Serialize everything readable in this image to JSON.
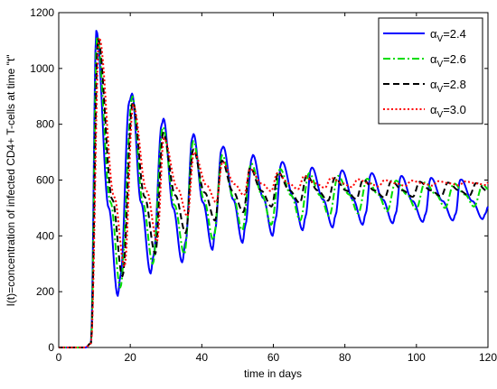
{
  "chart_data": {
    "type": "line",
    "xlabel": "time in days",
    "ylabel": "I(t)=concentration of infected CD4+ T-cells at time \"t\"",
    "xlim": [
      0,
      120
    ],
    "ylim": [
      0,
      1200
    ],
    "xticks": [
      0,
      20,
      40,
      60,
      80,
      100,
      120
    ],
    "yticks": [
      0,
      200,
      400,
      600,
      800,
      1000,
      1200
    ],
    "grid": false,
    "legend_position": "top-right",
    "series": [
      {
        "name": "αV=2.4",
        "legend_base": "α",
        "legend_sub": "V",
        "legend_value": "=2.4",
        "color": "#0000ff",
        "style": "solid",
        "period": 8.3,
        "x": [
          0,
          7.5,
          9,
          10.5,
          14,
          16.5,
          17.3,
          19.7,
          20.5,
          23,
          25.7,
          26.5,
          28.8,
          29.3,
          32,
          34.5,
          35.5,
          37.3,
          37.7,
          40.3,
          43,
          43.7,
          45.5,
          46,
          48.8,
          51.4,
          52.2,
          54,
          54.3,
          57.2,
          59.8,
          60.6,
          62.2,
          62.5,
          65.7,
          68.2,
          69,
          70.5,
          70.8,
          73.9,
          76.6,
          77.4,
          78.9,
          79.2,
          82.3,
          85,
          85.8,
          87.2,
          87.5,
          90.6,
          93.4,
          94.2,
          95.6,
          95.8,
          98.9,
          101.8,
          102.6,
          103.9,
          104.1,
          107.3,
          110.2,
          111,
          112.2,
          112.5,
          115.6,
          118.5,
          119.3,
          120
        ],
        "y": [
          0,
          0,
          15,
          1135,
          500,
          185,
          260,
          880,
          910,
          520,
          265,
          330,
          800,
          820,
          500,
          305,
          380,
          750,
          765,
          520,
          350,
          420,
          710,
          720,
          530,
          375,
          440,
          680,
          690,
          535,
          400,
          460,
          660,
          665,
          535,
          420,
          470,
          640,
          645,
          530,
          430,
          475,
          630,
          635,
          530,
          440,
          480,
          620,
          625,
          530,
          445,
          480,
          612,
          615,
          525,
          450,
          480,
          605,
          608,
          525,
          455,
          480,
          600,
          602,
          525,
          460,
          480,
          505
        ]
      },
      {
        "name": "αV=2.6",
        "legend_base": "α",
        "legend_sub": "V",
        "legend_value": "=2.6",
        "color": "#00dd00",
        "style": "dashdot",
        "period": 8.1,
        "x": [
          0,
          7.5,
          9,
          10.7,
          14.5,
          17.2,
          20.6,
          23.5,
          26.3,
          29.1,
          32.4,
          35.1,
          37.6,
          40.6,
          43.2,
          45.7,
          48.8,
          51.3,
          53.8,
          56.9,
          59.4,
          61.9,
          65,
          67.5,
          70,
          73.1,
          75.6,
          78.1,
          81.2,
          83.7,
          86.2,
          89.3,
          91.8,
          94.3,
          97.4,
          99.9,
          102.4,
          105.5,
          108,
          110.5,
          113.6,
          116.1,
          118.6,
          120
        ],
        "y": [
          0,
          0,
          15,
          1115,
          520,
          215,
          900,
          520,
          300,
          790,
          510,
          335,
          740,
          530,
          385,
          690,
          540,
          420,
          660,
          545,
          440,
          640,
          545,
          455,
          625,
          545,
          470,
          615,
          548,
          480,
          605,
          548,
          488,
          598,
          548,
          495,
          592,
          548,
          500,
          588,
          548,
          505,
          585,
          568
        ]
      },
      {
        "name": "αV=2.8",
        "legend_base": "α",
        "legend_sub": "V",
        "legend_value": "=2.8",
        "color": "#000000",
        "style": "dashed",
        "period": 7.9,
        "x": [
          0,
          7.5,
          9,
          11,
          15,
          17.8,
          20.7,
          24,
          27,
          29.2,
          32.6,
          35.5,
          37.6,
          40.8,
          43.7,
          45.6,
          48.7,
          51.6,
          53.5,
          56.6,
          59.5,
          61.4,
          64.5,
          67.4,
          69.3,
          72.4,
          75.3,
          77.2,
          80.3,
          83.2,
          85.1,
          88.2,
          91.1,
          93,
          96.1,
          99,
          100.9,
          104,
          106.9,
          108.8,
          111.9,
          114.8,
          116.7,
          120
        ],
        "y": [
          0,
          0,
          15,
          1105,
          530,
          255,
          880,
          540,
          335,
          770,
          545,
          410,
          710,
          555,
          455,
          670,
          560,
          485,
          645,
          562,
          505,
          628,
          563,
          518,
          617,
          563,
          526,
          608,
          563,
          532,
          602,
          563,
          537,
          597,
          563,
          540,
          594,
          563,
          542,
          591,
          563,
          544,
          589,
          560
        ]
      },
      {
        "name": "αV=3.0",
        "legend_base": "α",
        "legend_sub": "V",
        "legend_value": "=3.0",
        "color": "#ff0000",
        "style": "dotted",
        "period": 7.7,
        "x": [
          0,
          7.5,
          9,
          11.3,
          15.5,
          18.4,
          20.8,
          24.6,
          27.5,
          29.4,
          33.2,
          36,
          37.8,
          41.4,
          44,
          45.8,
          49.2,
          51.8,
          53.5,
          56.8,
          59.4,
          61.1,
          64.3,
          66.9,
          68.6,
          71.8,
          74.4,
          76.1,
          79.3,
          81.9,
          83.6,
          86.8,
          89.4,
          91.1,
          94.3,
          96.9,
          98.6,
          101.8,
          104.4,
          106.1,
          109.3,
          111.9,
          113.6,
          116.8,
          119.4,
          120
        ],
        "y": [
          0,
          0,
          15,
          1110,
          540,
          290,
          870,
          560,
          380,
          750,
          570,
          470,
          700,
          580,
          520,
          665,
          585,
          545,
          640,
          587,
          560,
          625,
          588,
          567,
          615,
          588,
          572,
          608,
          588,
          575,
          603,
          588,
          577,
          600,
          588,
          579,
          598,
          588,
          580,
          596,
          588,
          581,
          595,
          588,
          582,
          590
        ]
      }
    ]
  }
}
